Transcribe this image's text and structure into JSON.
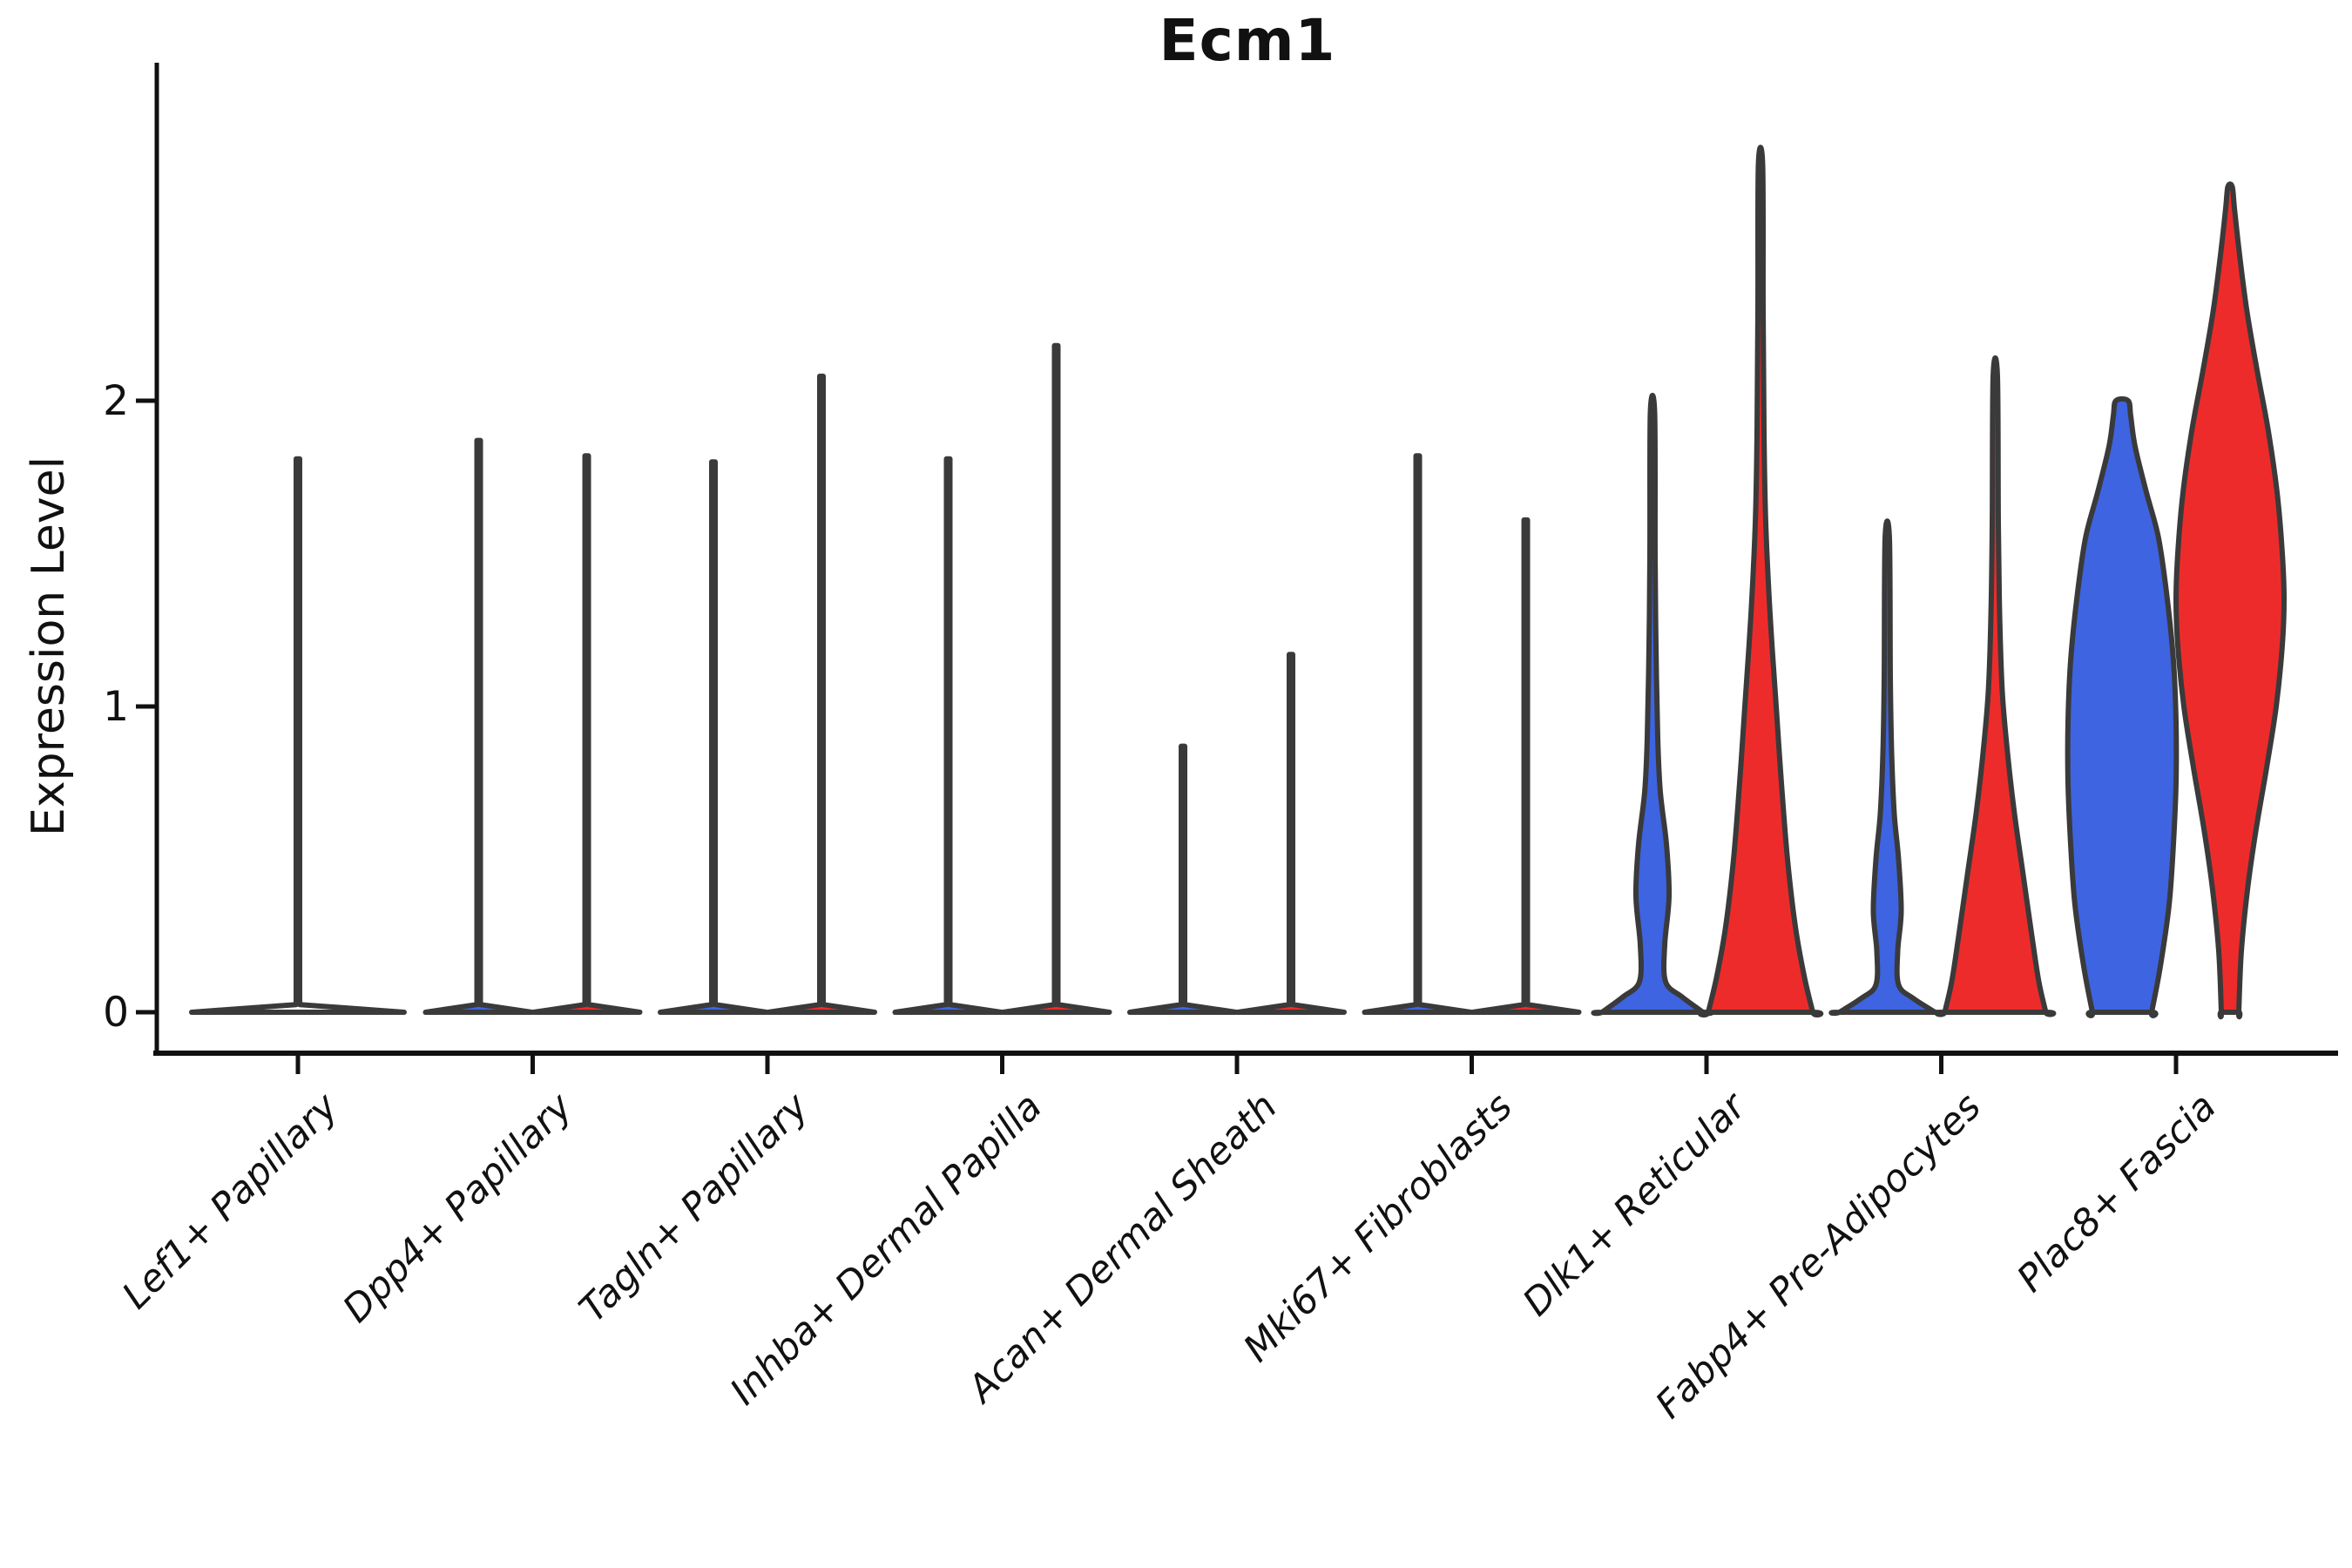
{
  "chart_data": {
    "type": "violin",
    "title": "Ecm1",
    "ylabel": "Expression Level",
    "yticks": [
      0,
      1,
      2
    ],
    "ytick_labels": [
      "0",
      "1",
      "2"
    ],
    "ylim": [
      0,
      3.1
    ],
    "legend": "none",
    "grid": false,
    "categories": [
      "Lef1+ Papillary",
      "Dpp4+ Papillary",
      "Tagln+ Papillary",
      "Inhba+ Dermal Papilla",
      "Acan+ Dermal Sheath",
      "Mki67+ Fibroblasts",
      "Dlk1+ Reticular",
      "Fabp4+ Pre-Adipocytes",
      "Plac8+ Fascia"
    ],
    "colors": {
      "blue": "#3E64E1",
      "red": "#EE2B2B",
      "none": "#ffffff",
      "outline": "#3A3A3A",
      "axis": "#111111"
    },
    "series": [
      {
        "name": "group-blue",
        "color": "#3E64E1",
        "max_expression": [
          null,
          1.87,
          1.8,
          1.81,
          0.87,
          1.82,
          1.96,
          1.55,
          2.0
        ]
      },
      {
        "name": "group-red",
        "color": "#EE2B2B",
        "max_expression": [
          null,
          1.82,
          2.08,
          2.18,
          1.17,
          1.61,
          2.77,
          2.08,
          2.7
        ]
      }
    ],
    "single_violin": {
      "category": "Lef1+ Papillary",
      "max_expression": 1.81
    },
    "note": "Categories 1-6 show near-zero density (flat base at 0 with a thin spike to the max value); categories 7-9 show filled blue/red violins with visible density bodies.",
    "violins": [
      {
        "cat": 0,
        "group": "single",
        "color": "none",
        "offset": 0,
        "smooth": false,
        "profile": [
          [
            0,
            122
          ],
          [
            0.025,
            2
          ],
          [
            1.81,
            2
          ]
        ]
      },
      {
        "cat": 1,
        "group": "blue",
        "color": "blue",
        "offset": -62,
        "smooth": false,
        "profile": [
          [
            0,
            61
          ],
          [
            0.025,
            2
          ],
          [
            1.87,
            2
          ]
        ]
      },
      {
        "cat": 1,
        "group": "red",
        "color": "red",
        "offset": 62,
        "smooth": false,
        "profile": [
          [
            0,
            61
          ],
          [
            0.025,
            2
          ],
          [
            1.82,
            2
          ]
        ]
      },
      {
        "cat": 2,
        "group": "blue",
        "color": "blue",
        "offset": -62,
        "smooth": false,
        "profile": [
          [
            0,
            61
          ],
          [
            0.025,
            2
          ],
          [
            1.8,
            2
          ]
        ]
      },
      {
        "cat": 2,
        "group": "red",
        "color": "red",
        "offset": 62,
        "smooth": false,
        "profile": [
          [
            0,
            61
          ],
          [
            0.025,
            2
          ],
          [
            2.08,
            2
          ]
        ]
      },
      {
        "cat": 3,
        "group": "blue",
        "color": "blue",
        "offset": -62,
        "smooth": false,
        "profile": [
          [
            0,
            61
          ],
          [
            0.025,
            2
          ],
          [
            1.81,
            2
          ]
        ]
      },
      {
        "cat": 3,
        "group": "red",
        "color": "red",
        "offset": 62,
        "smooth": false,
        "profile": [
          [
            0,
            61
          ],
          [
            0.025,
            2
          ],
          [
            2.18,
            2
          ]
        ]
      },
      {
        "cat": 4,
        "group": "blue",
        "color": "blue",
        "offset": -62,
        "smooth": false,
        "profile": [
          [
            0,
            61
          ],
          [
            0.025,
            2
          ],
          [
            0.87,
            2
          ]
        ]
      },
      {
        "cat": 4,
        "group": "red",
        "color": "red",
        "offset": 62,
        "smooth": false,
        "profile": [
          [
            0,
            61
          ],
          [
            0.025,
            2
          ],
          [
            1.17,
            2
          ]
        ]
      },
      {
        "cat": 5,
        "group": "blue",
        "color": "blue",
        "offset": -62,
        "smooth": false,
        "profile": [
          [
            0,
            61
          ],
          [
            0.025,
            2
          ],
          [
            1.82,
            2
          ]
        ]
      },
      {
        "cat": 5,
        "group": "red",
        "color": "red",
        "offset": 62,
        "smooth": false,
        "profile": [
          [
            0,
            61
          ],
          [
            0.025,
            2
          ],
          [
            1.61,
            2
          ]
        ]
      },
      {
        "cat": 6,
        "group": "blue",
        "color": "blue",
        "offset": -62,
        "smooth": true,
        "profile": [
          [
            0,
            58
          ],
          [
            0.05,
            34
          ],
          [
            0.1,
            15
          ],
          [
            0.22,
            14
          ],
          [
            0.38,
            19
          ],
          [
            0.55,
            16
          ],
          [
            0.72,
            9
          ],
          [
            0.9,
            6
          ],
          [
            1.2,
            4
          ],
          [
            1.5,
            3
          ],
          [
            1.96,
            2.5
          ]
        ]
      },
      {
        "cat": 6,
        "group": "red",
        "color": "red",
        "offset": 62,
        "smooth": true,
        "profile": [
          [
            0,
            60
          ],
          [
            0.12,
            50
          ],
          [
            0.28,
            40
          ],
          [
            0.5,
            31
          ],
          [
            0.75,
            24
          ],
          [
            1.0,
            18
          ],
          [
            1.3,
            11
          ],
          [
            1.6,
            6
          ],
          [
            1.9,
            4
          ],
          [
            2.3,
            3
          ],
          [
            2.77,
            2.5
          ]
        ]
      },
      {
        "cat": 7,
        "group": "blue",
        "color": "blue",
        "offset": -62,
        "smooth": true,
        "profile": [
          [
            0,
            55
          ],
          [
            0.045,
            30
          ],
          [
            0.09,
            13
          ],
          [
            0.2,
            12
          ],
          [
            0.33,
            16
          ],
          [
            0.5,
            13
          ],
          [
            0.65,
            8
          ],
          [
            0.85,
            5
          ],
          [
            1.1,
            3.5
          ],
          [
            1.55,
            2.5
          ]
        ]
      },
      {
        "cat": 7,
        "group": "red",
        "color": "red",
        "offset": 62,
        "smooth": true,
        "profile": [
          [
            0,
            58
          ],
          [
            0.1,
            50
          ],
          [
            0.25,
            42
          ],
          [
            0.45,
            32
          ],
          [
            0.65,
            22
          ],
          [
            0.85,
            14
          ],
          [
            1.05,
            8
          ],
          [
            1.3,
            5
          ],
          [
            1.6,
            3.5
          ],
          [
            2.08,
            2.5
          ]
        ]
      },
      {
        "cat": 8,
        "group": "blue",
        "color": "blue",
        "offset": -62,
        "smooth": true,
        "profile": [
          [
            0,
            34
          ],
          [
            0.15,
            44
          ],
          [
            0.35,
            54
          ],
          [
            0.55,
            59
          ],
          [
            0.75,
            62
          ],
          [
            0.95,
            62
          ],
          [
            1.15,
            59
          ],
          [
            1.35,
            52
          ],
          [
            1.55,
            42
          ],
          [
            1.7,
            28
          ],
          [
            1.85,
            15
          ],
          [
            1.95,
            10
          ],
          [
            2.0,
            7
          ]
        ]
      },
      {
        "cat": 8,
        "group": "red",
        "color": "red",
        "offset": 62,
        "smooth": true,
        "profile": [
          [
            0,
            10
          ],
          [
            0.2,
            13
          ],
          [
            0.4,
            20
          ],
          [
            0.6,
            30
          ],
          [
            0.8,
            42
          ],
          [
            1.0,
            53
          ],
          [
            1.2,
            60
          ],
          [
            1.35,
            62
          ],
          [
            1.5,
            60
          ],
          [
            1.7,
            54
          ],
          [
            1.9,
            44
          ],
          [
            2.1,
            31
          ],
          [
            2.3,
            19
          ],
          [
            2.5,
            10
          ],
          [
            2.63,
            5
          ],
          [
            2.7,
            2.5
          ]
        ]
      }
    ]
  }
}
